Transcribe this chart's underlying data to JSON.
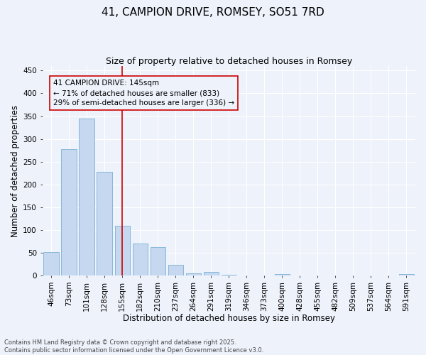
{
  "title": "41, CAMPION DRIVE, ROMSEY, SO51 7RD",
  "subtitle": "Size of property relative to detached houses in Romsey",
  "xlabel": "Distribution of detached houses by size in Romsey",
  "ylabel": "Number of detached properties",
  "bar_labels": [
    "46sqm",
    "73sqm",
    "101sqm",
    "128sqm",
    "155sqm",
    "182sqm",
    "210sqm",
    "237sqm",
    "264sqm",
    "291sqm",
    "319sqm",
    "346sqm",
    "373sqm",
    "400sqm",
    "428sqm",
    "455sqm",
    "482sqm",
    "509sqm",
    "537sqm",
    "564sqm",
    "591sqm"
  ],
  "bar_values": [
    51,
    278,
    345,
    228,
    110,
    70,
    63,
    23,
    5,
    8,
    2,
    0,
    0,
    3,
    0,
    0,
    0,
    0,
    0,
    0,
    3
  ],
  "bar_color": "#c5d8f0",
  "bar_edgecolor": "#7aafd4",
  "vline_x_idx": 4,
  "vline_color": "#cc0000",
  "annotation_text": "41 CAMPION DRIVE: 145sqm\n← 71% of detached houses are smaller (833)\n29% of semi-detached houses are larger (336) →",
  "annotation_box_edgecolor": "#cc0000",
  "annotation_fontsize": 7.5,
  "ylim": [
    0,
    460
  ],
  "yticks": [
    0,
    50,
    100,
    150,
    200,
    250,
    300,
    350,
    400,
    450
  ],
  "background_color": "#eef2fb",
  "grid_color": "#ffffff",
  "footer_line1": "Contains HM Land Registry data © Crown copyright and database right 2025.",
  "footer_line2": "Contains public sector information licensed under the Open Government Licence v3.0.",
  "title_fontsize": 11,
  "subtitle_fontsize": 9,
  "axis_label_fontsize": 8.5,
  "tick_fontsize": 7.5,
  "footer_fontsize": 6.0
}
